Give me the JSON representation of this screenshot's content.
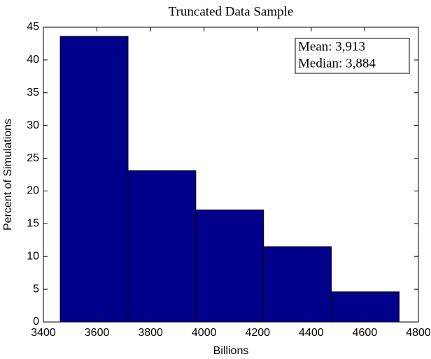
{
  "chart_data": {
    "type": "histogram",
    "title": "Truncated Data Sample",
    "x_label": "Billions",
    "y_label": "Percent of Simulations",
    "bins": [
      3463,
      3716,
      3969,
      4222,
      4475,
      4728
    ],
    "values": [
      43.6,
      23.1,
      17.1,
      11.5,
      4.6
    ],
    "color": "#00008b",
    "edge_color": "#000000",
    "xlim": [
      3400,
      4800
    ],
    "xticks": [
      3400,
      3600,
      3800,
      4000,
      4200,
      4400,
      4600,
      4800
    ],
    "ylim": [
      0,
      45
    ],
    "yticks": [
      0,
      5,
      10,
      15,
      20,
      25,
      30,
      35,
      40,
      45
    ],
    "grid": false,
    "annotations": [
      "Mean: 3,913",
      "Median: 3,884"
    ]
  }
}
